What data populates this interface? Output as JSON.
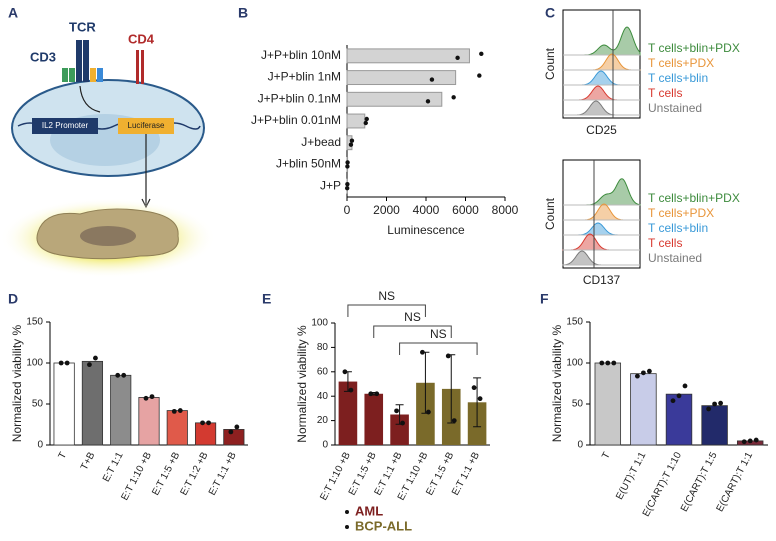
{
  "panel_a": {
    "label": "A",
    "cd3": "CD3",
    "tcr": "TCR",
    "cd4": "CD4",
    "promoter": "IL2 Promoter",
    "reporter": "Luciferase"
  },
  "chart_data": [
    {
      "panel": "B",
      "type": "hbar",
      "categories": [
        "J+P+blin 10nM",
        "J+P+blin 1nM",
        "J+P+blin 0.1nM",
        "J+P+blin 0.01nM",
        "J+bead",
        "J+blin 50nM",
        "J+P"
      ],
      "values": [
        6200,
        5500,
        4800,
        900,
        250,
        30,
        20
      ],
      "points": [
        [
          5600,
          6800
        ],
        [
          4300,
          6700
        ],
        [
          4100,
          5400
        ],
        [
          950,
          1000
        ],
        [
          200,
          250
        ],
        [
          20,
          30
        ],
        [
          10,
          20
        ]
      ],
      "color": "#d3d3d3",
      "xlim": [
        0,
        8000
      ],
      "xticks": [
        0,
        2000,
        4000,
        6000,
        8000
      ],
      "xlabel": "Luminescence"
    },
    {
      "panel": "C",
      "type": "ridgeline",
      "series": [
        {
          "name": "T cells+blin+PDX",
          "color": "#3d8b3d"
        },
        {
          "name": "T cells+PDX",
          "color": "#e8953a"
        },
        {
          "name": "T cells+blin",
          "color": "#3a9ad8"
        },
        {
          "name": "T cells",
          "color": "#d83a30"
        },
        {
          "name": "Unstained",
          "color": "#7a7a7a"
        }
      ],
      "plots": [
        {
          "xlabel": "CD25",
          "ylabel": "Count"
        },
        {
          "xlabel": "CD137",
          "ylabel": "Count"
        }
      ]
    },
    {
      "panel": "D",
      "type": "bar",
      "categories": [
        "T",
        "T+B",
        "E:T 1:1",
        "E:T 1:10 +B",
        "E:T 1:5 +B",
        "E:T 1:2 +B",
        "E:T 1:1 +B"
      ],
      "values": [
        100,
        102,
        85,
        58,
        42,
        27,
        19
      ],
      "points": [
        [
          100,
          100
        ],
        [
          98,
          106
        ],
        [
          85,
          85
        ],
        [
          57,
          59
        ],
        [
          41,
          42
        ],
        [
          27,
          27
        ],
        [
          16,
          22
        ]
      ],
      "colors": [
        "#ffffff",
        "#6e6e6e",
        "#8c8c8c",
        "#e6a3a3",
        "#e05a4a",
        "#d33a30",
        "#8e2020"
      ],
      "ylim": [
        0,
        150
      ],
      "yticks": [
        0,
        50,
        100,
        150
      ],
      "ylabel": "Normalized viability %"
    },
    {
      "panel": "E",
      "type": "errorbar",
      "series": [
        {
          "name": "AML",
          "color": "#7d1f1f",
          "categories": [
            "E:T 1:10 +B",
            "E:T 1:5 +B",
            "E:T 1:1 +B"
          ],
          "values": [
            52,
            42,
            25
          ],
          "errors": [
            8,
            1,
            8
          ],
          "points": [
            [
              60,
              45
            ],
            [
              42,
              42
            ],
            [
              28,
              18
            ]
          ]
        },
        {
          "name": "BCP-ALL",
          "color": "#7a6a2a",
          "categories": [
            "E:T 1:10 +B",
            "E:T 1:5 +B",
            "E:T 1:1 +B"
          ],
          "values": [
            51,
            46,
            35
          ],
          "errors": [
            25,
            28,
            20
          ],
          "points": [
            [
              76,
              27
            ],
            [
              73,
              20
            ],
            [
              47,
              38
            ]
          ]
        }
      ],
      "ylim": [
        0,
        100
      ],
      "yticks": [
        0,
        20,
        40,
        60,
        80,
        100
      ],
      "ylabel": "Normalized viability %",
      "annotations": [
        "NS",
        "NS",
        "NS"
      ]
    },
    {
      "panel": "F",
      "type": "bar",
      "categories": [
        "T",
        "E(UT):T 1:1",
        "E(CART):T 1:10",
        "E(CART):T 1:5",
        "E(CART):T 1:1"
      ],
      "values": [
        100,
        87,
        62,
        48,
        5
      ],
      "points": [
        [
          100,
          100,
          100
        ],
        [
          84,
          88,
          90
        ],
        [
          54,
          60,
          72
        ],
        [
          44,
          50,
          51
        ],
        [
          4,
          5,
          6
        ]
      ],
      "colors": [
        "#c8c8c8",
        "#c8cce8",
        "#3a3a9a",
        "#222a6a",
        "#7a2a3a"
      ],
      "ylim": [
        0,
        150
      ],
      "yticks": [
        0,
        50,
        100,
        150
      ],
      "ylabel": "Normalized viability %"
    }
  ]
}
